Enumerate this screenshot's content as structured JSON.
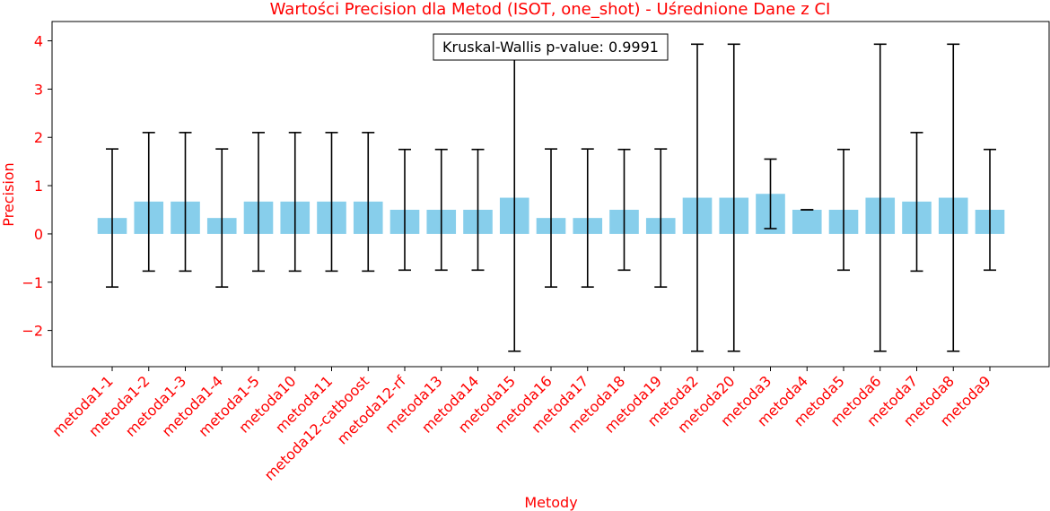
{
  "chart_data": {
    "type": "bar",
    "title": "Wartości Precision dla Metod (ISOT, one_shot) - Uśrednione Dane z CI",
    "xlabel": "Metody",
    "ylabel": "Precision",
    "ylim": [
      -2.75,
      4.4
    ],
    "yticks": [
      -2,
      -1,
      0,
      1,
      2,
      3,
      4
    ],
    "ytick_labels": [
      "−2",
      "−1",
      "0",
      "1",
      "2",
      "3",
      "4"
    ],
    "grid": false,
    "annotation": "Kruskal-Wallis p-value: 0.9991",
    "categories": [
      "metoda1-1",
      "metoda1-2",
      "metoda1-3",
      "metoda1-4",
      "metoda1-5",
      "metoda10",
      "metoda11",
      "metoda12-catboost",
      "metoda12-rf",
      "metoda13",
      "metoda14",
      "metoda15",
      "metoda16",
      "metoda17",
      "metoda18",
      "metoda19",
      "metoda2",
      "metoda20",
      "metoda3",
      "metoda4",
      "metoda5",
      "metoda6",
      "metoda7",
      "metoda8",
      "metoda9"
    ],
    "values": [
      0.33,
      0.67,
      0.67,
      0.33,
      0.67,
      0.67,
      0.67,
      0.67,
      0.5,
      0.5,
      0.5,
      0.75,
      0.33,
      0.33,
      0.5,
      0.33,
      0.75,
      0.75,
      0.83,
      0.5,
      0.5,
      0.75,
      0.67,
      0.75,
      0.5
    ],
    "ci_lower": [
      -1.1,
      -0.77,
      -0.77,
      -1.1,
      -0.77,
      -0.77,
      -0.77,
      -0.77,
      -0.75,
      -0.75,
      -0.75,
      -2.43,
      -1.1,
      -1.1,
      -0.75,
      -1.1,
      -2.43,
      -2.43,
      0.11,
      0.5,
      -0.75,
      -2.43,
      -0.77,
      -2.43,
      -0.75
    ],
    "ci_upper": [
      1.76,
      2.1,
      2.1,
      1.76,
      2.1,
      2.1,
      2.1,
      2.1,
      1.75,
      1.75,
      1.75,
      3.93,
      1.76,
      1.76,
      1.75,
      1.76,
      3.93,
      3.93,
      1.55,
      0.5,
      1.75,
      3.93,
      2.1,
      3.93,
      1.75
    ]
  },
  "colors": {
    "bar": "#87ceeb",
    "error_bar": "#000000",
    "label_text": "#ff0000",
    "axis": "#000000"
  }
}
